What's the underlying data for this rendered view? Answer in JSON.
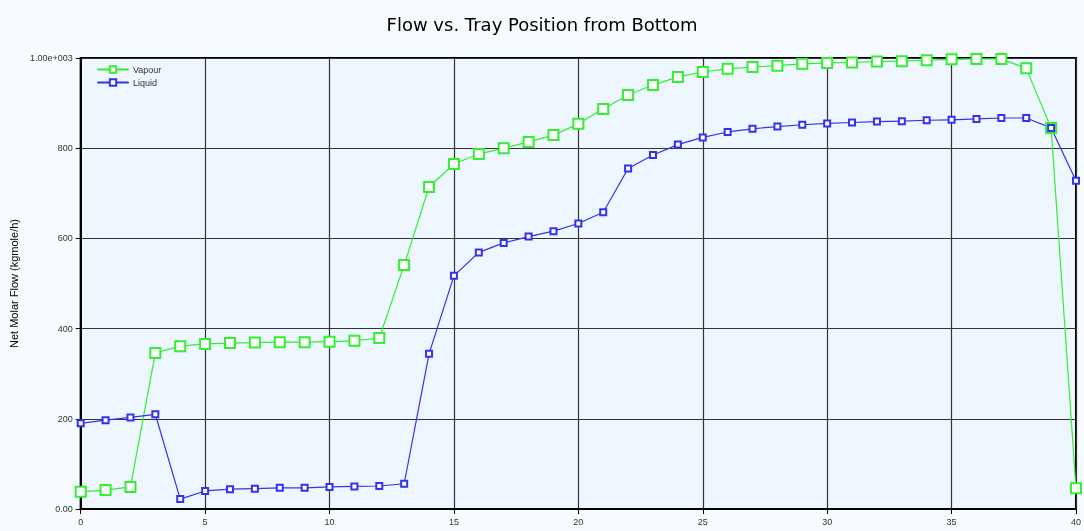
{
  "chart_data": {
    "type": "line",
    "title": "Flow vs. Tray Position from Bottom",
    "ylabel": "Net Molar Flow (kgmole/h)",
    "x": [
      0,
      1,
      2,
      3,
      4,
      5,
      6,
      7,
      8,
      9,
      10,
      11,
      12,
      13,
      14,
      15,
      16,
      17,
      18,
      19,
      20,
      21,
      22,
      23,
      24,
      25,
      26,
      27,
      28,
      29,
      30,
      31,
      32,
      33,
      34,
      35,
      36,
      37,
      38,
      39,
      40
    ],
    "series": [
      {
        "name": "Vapour",
        "color": "#33ee33",
        "values": [
          38,
          42,
          49,
          346,
          361,
          366,
          368,
          369,
          370,
          370,
          371,
          373,
          379,
          541,
          714,
          765,
          787,
          800,
          814,
          829,
          854,
          887,
          918,
          940,
          958,
          969,
          976,
          980,
          983,
          987,
          989,
          990,
          992,
          993,
          995,
          997,
          998,
          998,
          977,
          845,
          46
        ]
      },
      {
        "name": "Liquid",
        "color": "#3333ee",
        "values": [
          190,
          197,
          203,
          210,
          22,
          40,
          44,
          45,
          47,
          47,
          49,
          50,
          51,
          56,
          344,
          517,
          569,
          590,
          604,
          616,
          633,
          658,
          755,
          785,
          808,
          824,
          836,
          843,
          848,
          852,
          855,
          857,
          859,
          860,
          862,
          863,
          865,
          867,
          867,
          845,
          728
        ]
      }
    ],
    "xlim": [
      0,
      40
    ],
    "xticks": [
      0,
      5,
      10,
      15,
      20,
      25,
      30,
      35,
      40
    ],
    "ylim": [
      0,
      1000
    ],
    "yticks": [
      {
        "value": 0,
        "label": "0.00"
      },
      200,
      400,
      600,
      800,
      {
        "value": 1000,
        "label": "1.00e+003"
      }
    ],
    "grid": true,
    "legend": "top left",
    "marker": "square",
    "line_style": "solid"
  }
}
